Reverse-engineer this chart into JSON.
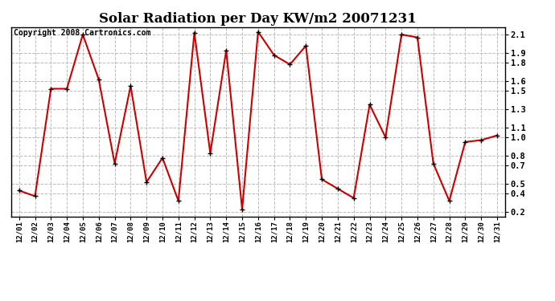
{
  "title": "Solar Radiation per Day KW/m2 20071231",
  "copyright": "Copyright 2008 Cartronics.com",
  "dates": [
    "12/01",
    "12/02",
    "12/03",
    "12/04",
    "12/05",
    "12/06",
    "12/07",
    "12/08",
    "12/09",
    "12/10",
    "12/11",
    "12/12",
    "12/13",
    "12/14",
    "12/15",
    "12/16",
    "12/17",
    "12/18",
    "12/19",
    "12/20",
    "12/21",
    "12/22",
    "12/23",
    "12/24",
    "12/25",
    "12/26",
    "12/27",
    "12/28",
    "12/29",
    "12/30",
    "12/31"
  ],
  "values": [
    0.43,
    0.37,
    1.52,
    1.52,
    2.1,
    1.62,
    0.72,
    1.55,
    0.52,
    0.78,
    0.32,
    2.12,
    0.83,
    1.93,
    0.23,
    2.13,
    1.88,
    1.78,
    1.98,
    0.55,
    0.45,
    0.35,
    1.35,
    1.0,
    2.1,
    2.07,
    0.72,
    0.32,
    0.95,
    0.97,
    1.02
  ],
  "line_color": "#cc0000",
  "marker": "+",
  "marker_color": "#000000",
  "marker_size": 5,
  "line_width": 1.5,
  "yticks": [
    2.1,
    1.9,
    1.8,
    1.6,
    1.5,
    1.3,
    1.1,
    1.0,
    0.8,
    0.7,
    0.5,
    0.4,
    0.2
  ],
  "grid_color": "#bbbbbb",
  "grid_style": "--",
  "bg_color": "#ffffff",
  "title_fontsize": 12,
  "copyright_fontsize": 7
}
